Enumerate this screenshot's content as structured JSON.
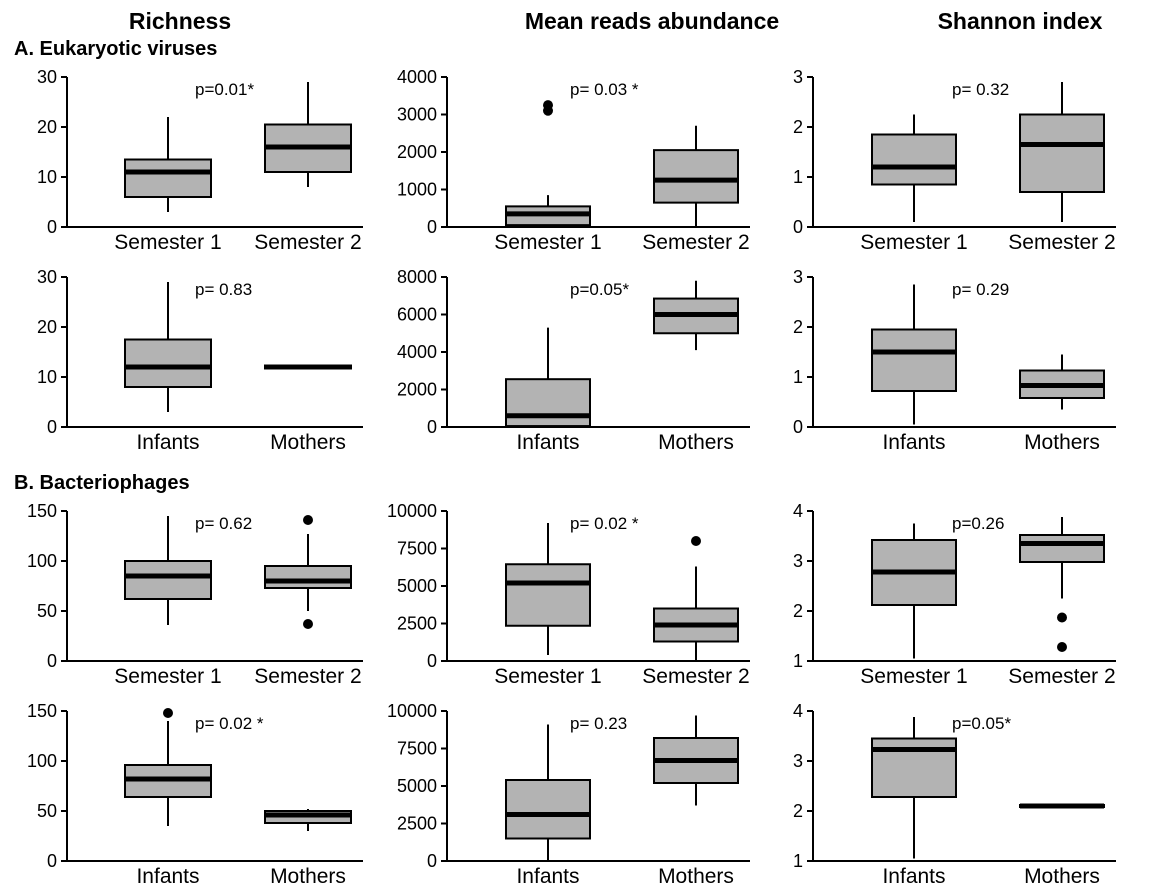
{
  "column_titles": [
    "Richness",
    "Mean reads abundance",
    "Shannon index"
  ],
  "sections": [
    {
      "title": "A. Eukaryotic viruses"
    },
    {
      "title": "B.  Bacteriophages"
    }
  ],
  "colors": {
    "box_fill": "#b3b3b3",
    "stroke": "#000000",
    "background": "#ffffff"
  },
  "chart_data": [
    {
      "type": "box",
      "section": "A. Eukaryotic viruses",
      "metric": "Richness",
      "pvalue": "p=0.01*",
      "ylim": [
        0,
        30
      ],
      "yticks": [
        0,
        10,
        20,
        30
      ],
      "categories": [
        "Semester 1",
        "Semester 2"
      ],
      "boxes": [
        {
          "min": 3,
          "q1": 6,
          "median": 11,
          "q3": 13.5,
          "max": 22,
          "outliers": []
        },
        {
          "min": 8,
          "q1": 11,
          "median": 16,
          "q3": 20.5,
          "max": 29,
          "outliers": []
        }
      ]
    },
    {
      "type": "box",
      "section": "A. Eukaryotic viruses",
      "metric": "Mean reads abundance",
      "pvalue": "p= 0.03 *",
      "ylim": [
        0,
        4000
      ],
      "yticks": [
        0,
        1000,
        2000,
        3000,
        4000
      ],
      "categories": [
        "Semester 1",
        "Semester 2"
      ],
      "boxes": [
        {
          "min": 0,
          "q1": 50,
          "median": 350,
          "q3": 550,
          "max": 850,
          "outliers": [
            3100,
            3250
          ]
        },
        {
          "min": 0,
          "q1": 650,
          "median": 1250,
          "q3": 2050,
          "max": 2700,
          "outliers": []
        }
      ]
    },
    {
      "type": "box",
      "section": "A. Eukaryotic viruses",
      "metric": "Shannon index",
      "pvalue": "p= 0.32",
      "ylim": [
        0,
        3
      ],
      "yticks": [
        0,
        1,
        2,
        3
      ],
      "categories": [
        "Semester 1",
        "Semester 2"
      ],
      "boxes": [
        {
          "min": 0.1,
          "q1": 0.85,
          "median": 1.2,
          "q3": 1.85,
          "max": 2.25,
          "outliers": []
        },
        {
          "min": 0.1,
          "q1": 0.7,
          "median": 1.65,
          "q3": 2.25,
          "max": 2.9,
          "outliers": []
        }
      ]
    },
    {
      "type": "box",
      "section": "A. Eukaryotic viruses",
      "metric": "Richness",
      "pvalue": "p= 0.83",
      "ylim": [
        0,
        30
      ],
      "yticks": [
        0,
        10,
        20,
        30
      ],
      "categories": [
        "Infants",
        "Mothers"
      ],
      "boxes": [
        {
          "min": 3,
          "q1": 8,
          "median": 12,
          "q3": 17.5,
          "max": 29,
          "outliers": []
        },
        {
          "min": 11.5,
          "q1": 11.7,
          "median": 12,
          "q3": 12.3,
          "max": 12.5,
          "outliers": []
        }
      ]
    },
    {
      "type": "box",
      "section": "A. Eukaryotic viruses",
      "metric": "Mean reads abundance",
      "pvalue": "p=0.05*",
      "ylim": [
        0,
        8000
      ],
      "yticks": [
        0,
        2000,
        4000,
        6000,
        8000
      ],
      "categories": [
        "Infants",
        "Mothers"
      ],
      "boxes": [
        {
          "min": 0,
          "q1": 50,
          "median": 600,
          "q3": 2550,
          "max": 5300,
          "outliers": []
        },
        {
          "min": 4100,
          "q1": 5000,
          "median": 6000,
          "q3": 6850,
          "max": 7800,
          "outliers": []
        }
      ]
    },
    {
      "type": "box",
      "section": "A. Eukaryotic viruses",
      "metric": "Shannon index",
      "pvalue": "p= 0.29",
      "ylim": [
        0,
        3
      ],
      "yticks": [
        0,
        1,
        2,
        3
      ],
      "categories": [
        "Infants",
        "Mothers"
      ],
      "boxes": [
        {
          "min": 0.05,
          "q1": 0.72,
          "median": 1.5,
          "q3": 1.95,
          "max": 2.85,
          "outliers": []
        },
        {
          "min": 0.35,
          "q1": 0.58,
          "median": 0.83,
          "q3": 1.13,
          "max": 1.45,
          "outliers": []
        }
      ]
    },
    {
      "type": "box",
      "section": "B. Bacteriophages",
      "metric": "Richness",
      "pvalue": "p= 0.62",
      "ylim": [
        0,
        150
      ],
      "yticks": [
        0,
        50,
        100,
        150
      ],
      "categories": [
        "Semester 1",
        "Semester 2"
      ],
      "boxes": [
        {
          "min": 36,
          "q1": 62,
          "median": 85,
          "q3": 100,
          "max": 145,
          "outliers": []
        },
        {
          "min": 50,
          "q1": 73,
          "median": 80,
          "q3": 95,
          "max": 127,
          "outliers": [
            37,
            141
          ]
        }
      ]
    },
    {
      "type": "box",
      "section": "B. Bacteriophages",
      "metric": "Mean reads abundance",
      "pvalue": "p= 0.02 *",
      "ylim": [
        0,
        10000
      ],
      "yticks": [
        0,
        2500,
        5000,
        7500,
        10000
      ],
      "categories": [
        "Semester 1",
        "Semester 2"
      ],
      "boxes": [
        {
          "min": 400,
          "q1": 2350,
          "median": 5200,
          "q3": 6450,
          "max": 9200,
          "outliers": []
        },
        {
          "min": 0,
          "q1": 1300,
          "median": 2400,
          "q3": 3500,
          "max": 6300,
          "outliers": [
            8000
          ]
        }
      ]
    },
    {
      "type": "box",
      "section": "B. Bacteriophages",
      "metric": "Shannon index",
      "pvalue": "p=0.26",
      "ylim": [
        1,
        4
      ],
      "yticks": [
        1,
        2,
        3,
        4
      ],
      "categories": [
        "Semester 1",
        "Semester 2"
      ],
      "boxes": [
        {
          "min": 1.05,
          "q1": 2.12,
          "median": 2.78,
          "q3": 3.42,
          "max": 3.75,
          "outliers": []
        },
        {
          "min": 2.25,
          "q1": 2.98,
          "median": 3.35,
          "q3": 3.52,
          "max": 3.88,
          "outliers": [
            1.28,
            1.87
          ]
        }
      ]
    },
    {
      "type": "box",
      "section": "B. Bacteriophages",
      "metric": "Richness",
      "pvalue": "p= 0.02 *",
      "ylim": [
        0,
        150
      ],
      "yticks": [
        0,
        50,
        100,
        150
      ],
      "categories": [
        "Infants",
        "Mothers"
      ],
      "boxes": [
        {
          "min": 35,
          "q1": 64,
          "median": 82,
          "q3": 96,
          "max": 140,
          "outliers": [
            148
          ]
        },
        {
          "min": 30,
          "q1": 38,
          "median": 46,
          "q3": 50,
          "max": 52,
          "outliers": []
        }
      ]
    },
    {
      "type": "box",
      "section": "B. Bacteriophages",
      "metric": "Mean reads abundance",
      "pvalue": "p= 0.23",
      "ylim": [
        0,
        10000
      ],
      "yticks": [
        0,
        2500,
        5000,
        7500,
        10000
      ],
      "categories": [
        "Infants",
        "Mothers"
      ],
      "boxes": [
        {
          "min": 0,
          "q1": 1500,
          "median": 3100,
          "q3": 5400,
          "max": 9100,
          "outliers": []
        },
        {
          "min": 3700,
          "q1": 5200,
          "median": 6700,
          "q3": 8200,
          "max": 9700,
          "outliers": []
        }
      ]
    },
    {
      "type": "box",
      "section": "B. Bacteriophages",
      "metric": "Shannon index",
      "pvalue": "p=0.05*",
      "ylim": [
        1,
        4
      ],
      "yticks": [
        1,
        2,
        3,
        4
      ],
      "categories": [
        "Infants",
        "Mothers"
      ],
      "boxes": [
        {
          "min": 1.05,
          "q1": 2.28,
          "median": 3.23,
          "q3": 3.45,
          "max": 3.88,
          "outliers": []
        },
        {
          "min": 2.07,
          "q1": 2.09,
          "median": 2.1,
          "q3": 2.12,
          "max": 2.14,
          "outliers": []
        }
      ]
    }
  ]
}
